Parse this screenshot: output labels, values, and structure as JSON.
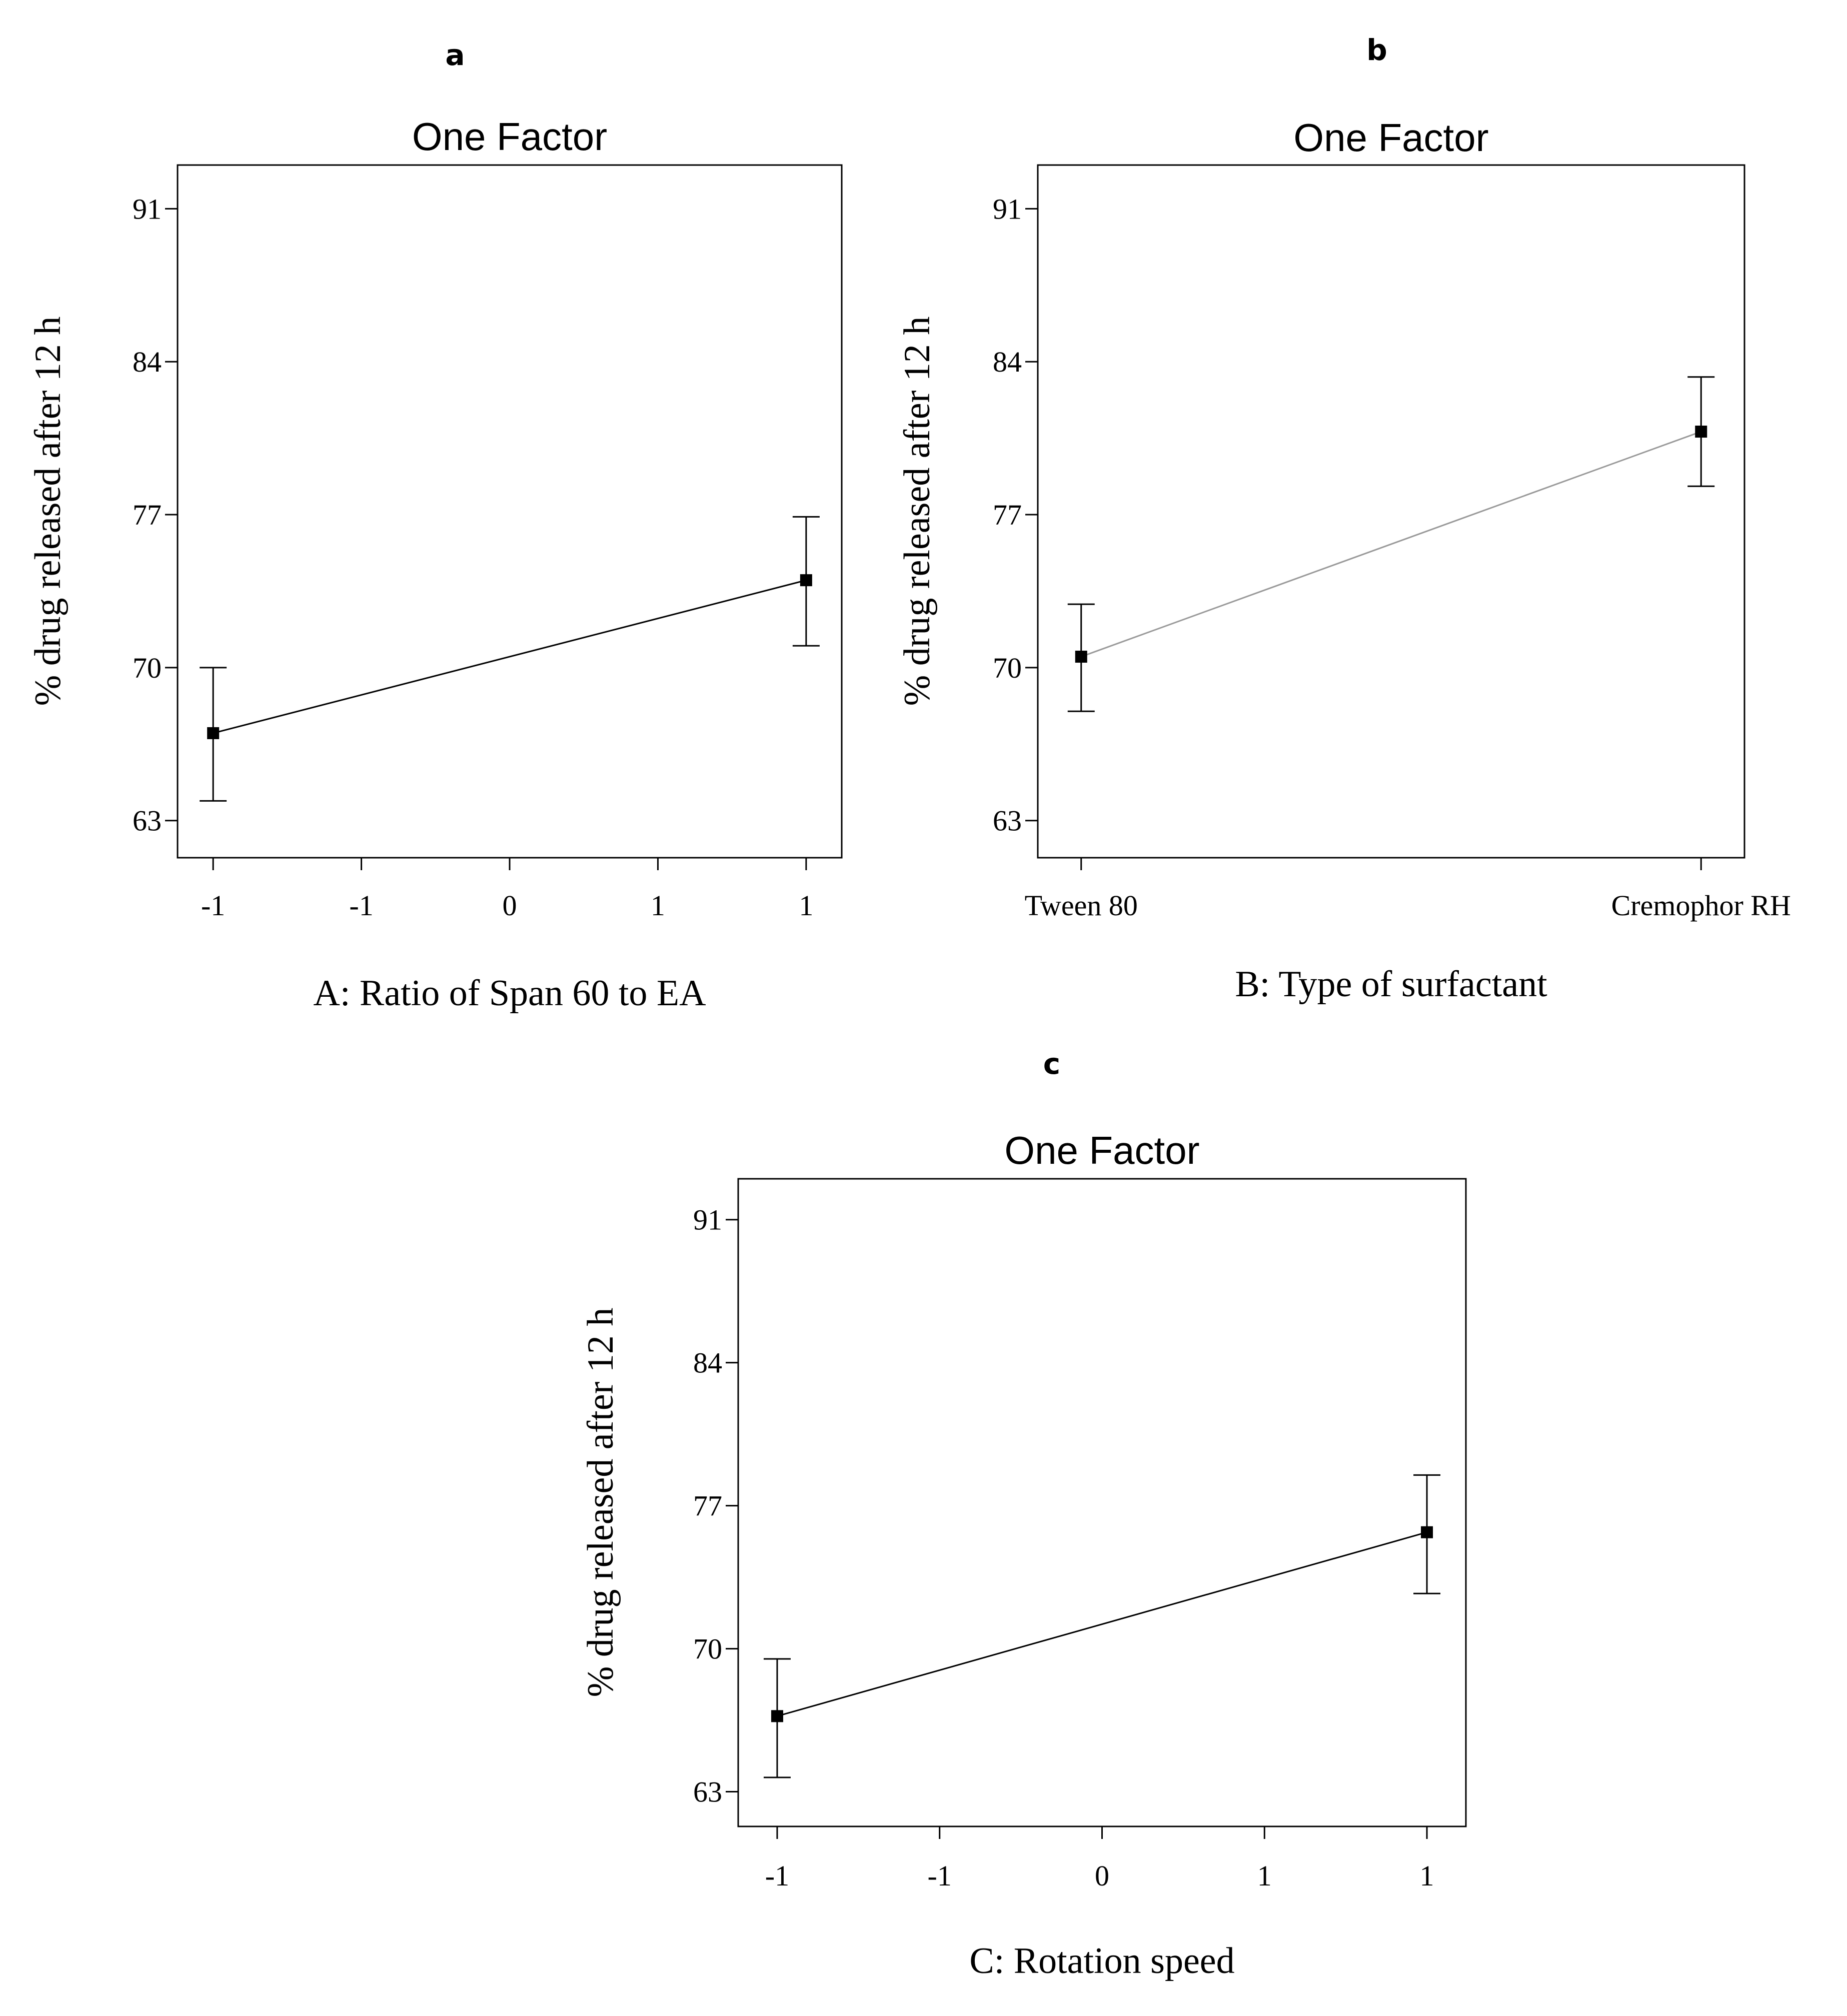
{
  "chart_data": [
    {
      "panel": "a",
      "type": "line",
      "title": "One Factor",
      "xlabel": "A: Ratio of Span 60 to EA",
      "ylabel": "% drug released after 12 h",
      "xlim": [
        -1.12,
        1.12
      ],
      "ylim": [
        61.3,
        93.0
      ],
      "x_ticks": [
        -1,
        -0.5,
        0,
        0.5,
        1
      ],
      "x_tick_labels": [
        "-1",
        "-1",
        "0",
        "1",
        "1"
      ],
      "y_ticks": [
        63,
        70,
        77,
        84,
        91
      ],
      "y_tick_labels": [
        "63",
        "70",
        "77",
        "84",
        "91"
      ],
      "points": [
        {
          "x": -1,
          "y": 67.0,
          "err_low": 63.9,
          "err_high": 70.0
        },
        {
          "x": 1,
          "y": 74.0,
          "err_low": 71.0,
          "err_high": 76.9
        }
      ],
      "line_color": "#000000",
      "grid": false
    },
    {
      "panel": "b",
      "type": "line",
      "title": "One Factor",
      "xlabel": "B: Type of surfactant",
      "ylabel": "% drug released after 12 h",
      "categories": [
        "Tween 80",
        "Cremophor RH"
      ],
      "xlim": [
        -0.07,
        1.07
      ],
      "ylim": [
        61.3,
        93.0
      ],
      "y_ticks": [
        63,
        70,
        77,
        84,
        91
      ],
      "y_tick_labels": [
        "63",
        "70",
        "77",
        "84",
        "91"
      ],
      "points": [
        {
          "x": 0,
          "y": 70.5,
          "err_low": 68.0,
          "err_high": 72.9
        },
        {
          "x": 1,
          "y": 80.8,
          "err_low": 78.3,
          "err_high": 83.3
        }
      ],
      "line_color": "#9a9a9a",
      "grid": false
    },
    {
      "panel": "c",
      "type": "line",
      "title": "One Factor",
      "xlabel": "C: Rotation speed",
      "ylabel": "% drug released after 12 h",
      "xlim": [
        -1.12,
        1.12
      ],
      "ylim": [
        61.3,
        93.0
      ],
      "x_ticks": [
        -1,
        -0.5,
        0,
        0.5,
        1
      ],
      "x_tick_labels": [
        "-1",
        "-1",
        "0",
        "1",
        "1"
      ],
      "y_ticks": [
        63,
        70,
        77,
        84,
        91
      ],
      "y_tick_labels": [
        "63",
        "70",
        "77",
        "84",
        "91"
      ],
      "points": [
        {
          "x": -1,
          "y": 66.7,
          "err_low": 63.7,
          "err_high": 69.5
        },
        {
          "x": 1,
          "y": 75.7,
          "err_low": 72.7,
          "err_high": 78.5
        }
      ],
      "line_color": "#000000",
      "grid": false
    }
  ]
}
